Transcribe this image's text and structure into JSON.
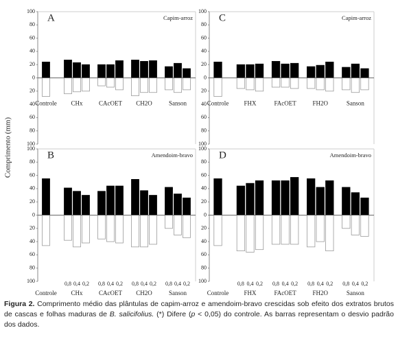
{
  "ylabel": "Comprimento (mm)",
  "chart_data": [
    {
      "type": "bar",
      "title": "A",
      "annotation": "Capim-arroz",
      "groups": [
        "Controle",
        "CHx",
        "CAcOET",
        "CH2O",
        "Sanson"
      ],
      "series": [
        {
          "color": "#000000",
          "values": [
            24,
            27,
            23,
            20,
            20,
            20,
            26,
            27,
            25,
            26,
            17,
            22,
            14
          ]
        },
        {
          "color": "#ffffff",
          "values": [
            -28,
            -24,
            -21,
            -20,
            -12,
            -14,
            -18,
            -27,
            -22,
            -22,
            -18,
            -22,
            -18
          ]
        }
      ],
      "ylim": [
        -100,
        100
      ],
      "yticks": [
        100,
        80,
        60,
        40,
        20,
        0,
        {
          "value": -20,
          "label": "20"
        },
        {
          "value": -40,
          "label": "40"
        },
        {
          "value": -60,
          "label": "60"
        },
        {
          "value": -80,
          "label": "80"
        },
        {
          "value": -100,
          "label": "100"
        }
      ]
    },
    {
      "type": "bar",
      "title": "B",
      "annotation": "Amendoim-bravo",
      "groups": [
        "Controle",
        "CHx",
        "CAcOET",
        "CH2O",
        "Sanson"
      ],
      "doses": [
        "0,8",
        "0,4",
        "0,2"
      ],
      "series": [
        {
          "color": "#000000",
          "values": [
            55,
            41,
            36,
            30,
            36,
            44,
            44,
            54,
            37,
            30,
            42,
            32,
            26
          ]
        },
        {
          "color": "#ffffff",
          "values": [
            -46,
            -38,
            -48,
            -42,
            -36,
            -40,
            -42,
            -48,
            -48,
            -44,
            -20,
            -30,
            -34
          ]
        }
      ],
      "ylim": [
        -100,
        100
      ],
      "yticks": [
        100,
        80,
        60,
        40,
        20,
        0,
        {
          "value": -20,
          "label": "20"
        },
        {
          "value": -40,
          "label": "40"
        },
        {
          "value": -60,
          "label": "60"
        },
        {
          "value": -80,
          "label": "80"
        },
        {
          "value": -100,
          "label": "100"
        }
      ]
    },
    {
      "type": "bar",
      "title": "C",
      "annotation": "Capim-arroz",
      "groups": [
        "Controle",
        "FHX",
        "FAcOET",
        "FH2O",
        "Sanson"
      ],
      "series": [
        {
          "color": "#000000",
          "values": [
            24,
            20,
            20,
            21,
            25,
            21,
            22,
            17,
            19,
            24,
            16,
            21,
            14
          ]
        },
        {
          "color": "#ffffff",
          "values": [
            -28,
            -16,
            -18,
            -20,
            -14,
            -14,
            -16,
            -16,
            -18,
            -20,
            -18,
            -22,
            -18
          ]
        }
      ],
      "ylim": [
        -100,
        100
      ],
      "yticks": [
        100,
        80,
        60,
        40,
        20,
        0,
        {
          "value": -20,
          "label": "20"
        },
        {
          "value": -40,
          "label": "40"
        },
        {
          "value": -60,
          "label": "60"
        },
        {
          "value": -80,
          "label": "80"
        },
        {
          "value": -100,
          "label": "100"
        }
      ]
    },
    {
      "type": "bar",
      "title": "D",
      "annotation": "Amendoim-bravo",
      "groups": [
        "Controle",
        "FHX",
        "FAcOET",
        "FH2O",
        "Sanson"
      ],
      "doses": [
        "0,8",
        "0,4",
        "0,2"
      ],
      "series": [
        {
          "color": "#000000",
          "values": [
            55,
            44,
            48,
            52,
            52,
            52,
            57,
            55,
            42,
            52,
            42,
            34,
            26
          ]
        },
        {
          "color": "#ffffff",
          "values": [
            -46,
            -54,
            -56,
            -52,
            -44,
            -44,
            -44,
            -48,
            -40,
            -54,
            -20,
            -30,
            -32
          ]
        }
      ],
      "ylim": [
        -100,
        100
      ],
      "yticks": [
        100,
        80,
        60,
        40,
        20,
        0,
        {
          "value": -20,
          "label": "20"
        },
        {
          "value": -40,
          "label": "40"
        },
        {
          "value": -60,
          "label": "60"
        },
        {
          "value": -80,
          "label": "80"
        },
        {
          "value": -100,
          "label": "100"
        }
      ]
    }
  ],
  "caption": {
    "label": "Figura 2.",
    "text1": "Comprimento médio das plântulas de capim-arroz e amendoim-bravo crescidas sob efeito dos extratos brutos de cascas e folhas maduras de",
    "species": "B. salicifolius.",
    "text2": "(*) Difere (",
    "p": "p",
    "text3": "< 0,05) do controle. As barras representam o desvio padrão dos dados."
  }
}
